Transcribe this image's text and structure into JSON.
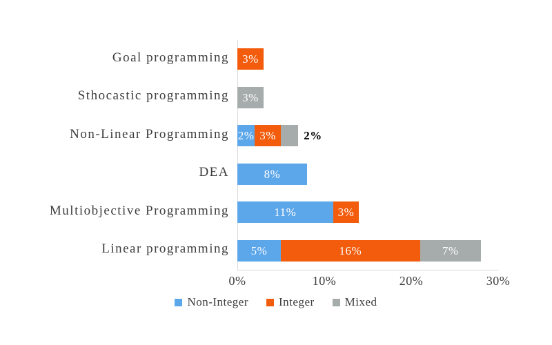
{
  "chart_data": {
    "type": "bar",
    "orientation": "horizontal",
    "stacked": true,
    "title": "",
    "xlabel": "",
    "ylabel": "",
    "xlim": [
      0,
      30
    ],
    "grid": false,
    "legend_position": "bottom",
    "categories": [
      "Goal programming",
      "Sthocastic programming",
      "Non-Linear Programming",
      "DEA",
      "Multiobjective Programming",
      "Linear programming"
    ],
    "series": [
      {
        "name": "Non-Integer",
        "color": "#5CA6EA",
        "values": [
          0,
          0,
          2,
          8,
          11,
          5
        ],
        "labels": [
          "",
          "",
          "2%",
          "8%",
          "11%",
          "5%"
        ]
      },
      {
        "name": "Integer",
        "color": "#F25C0C",
        "values": [
          3,
          0,
          3,
          0,
          3,
          16
        ],
        "labels": [
          "3%",
          "",
          "3%",
          "",
          "3%",
          "16%"
        ]
      },
      {
        "name": "Mixed",
        "color": "#A6ACAB",
        "values": [
          0,
          3,
          2,
          0,
          0,
          7
        ],
        "labels": [
          "",
          "3%",
          "2%",
          "",
          "",
          "7%"
        ]
      }
    ],
    "label_overrides": [
      {
        "category_index": 2,
        "series_index": 2,
        "position": "outside",
        "color": "#000000"
      }
    ],
    "x_ticks": [
      "0%",
      "10%",
      "20%",
      "30%"
    ],
    "x_tick_values": [
      0,
      10,
      20,
      30
    ],
    "legend": [
      "Non-Integer",
      "Integer",
      "Mixed"
    ],
    "colors": {
      "axis_line": "#D9D9D9",
      "category_text": "#3D3D3D",
      "tick_text": "#3D3D3D",
      "legend_text": "#3D3D3D",
      "inside_label_text": "#FFFFFF"
    }
  }
}
